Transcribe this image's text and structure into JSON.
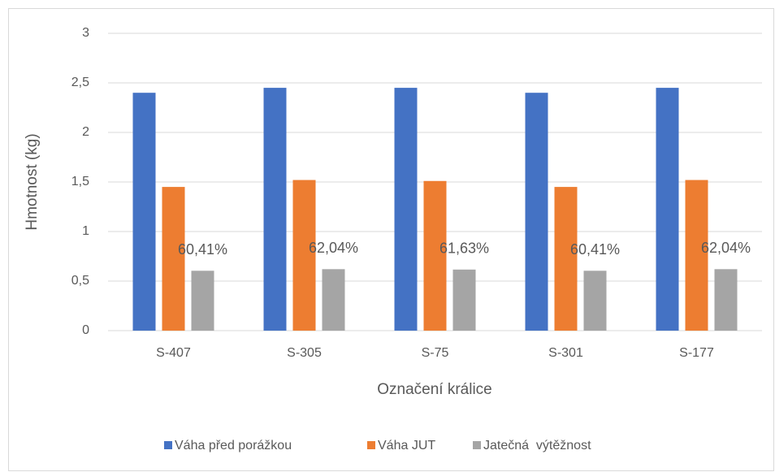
{
  "chart_data": {
    "type": "bar",
    "xlabel": "Označení králice",
    "ylabel": "Hmotnost (kg)",
    "categories": [
      "S-407",
      "S-305",
      "S-75",
      "S-301",
      "S-177"
    ],
    "series": [
      {
        "name": "Váha před porážkou",
        "color": "#4472c4",
        "values": [
          2.4,
          2.45,
          2.45,
          2.4,
          2.45
        ]
      },
      {
        "name": "Váha JUT",
        "color": "#ed7d31",
        "values": [
          1.45,
          1.52,
          1.51,
          1.45,
          1.52
        ]
      },
      {
        "name": "Jatečná  výtěžnost",
        "color": "#a5a5a5",
        "values": [
          0.6041,
          0.6204,
          0.6163,
          0.6041,
          0.6204
        ],
        "value_labels": [
          "60,41%",
          "62,04%",
          "61,63%",
          "60,41%",
          "62,04%"
        ]
      }
    ],
    "ylim": [
      0,
      3
    ],
    "yticks": [
      0,
      {
        "value": 0.5,
        "label": "0,5"
      },
      1,
      {
        "value": 1.5,
        "label": "1,5"
      },
      2,
      {
        "value": 2.5,
        "label": "2,5"
      },
      3
    ],
    "grid": true,
    "legend": "bottom"
  }
}
